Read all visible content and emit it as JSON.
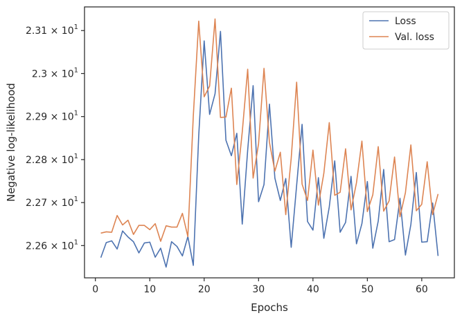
{
  "chart_data": {
    "type": "line",
    "xlabel": "Epochs",
    "ylabel": "Negative log-likelihood",
    "xlim": [
      -2,
      66
    ],
    "ylim": [
      22.525,
      23.155
    ],
    "x_ticks": [
      0,
      10,
      20,
      30,
      40,
      50,
      60
    ],
    "x_tick_labels": [
      "0",
      "10",
      "20",
      "30",
      "40",
      "50",
      "60"
    ],
    "y_ticks": [
      {
        "value": 22.6,
        "mantissa": "2.26",
        "times": "×",
        "base": "10",
        "exp": "1"
      },
      {
        "value": 22.7,
        "mantissa": "2.27",
        "times": "×",
        "base": "10",
        "exp": "1"
      },
      {
        "value": 22.8,
        "mantissa": "2.28",
        "times": "×",
        "base": "10",
        "exp": "1"
      },
      {
        "value": 22.9,
        "mantissa": "2.29",
        "times": "×",
        "base": "10",
        "exp": "1"
      },
      {
        "value": 23.0,
        "mantissa": "2.3",
        "times": "×",
        "base": "10",
        "exp": "1"
      },
      {
        "value": 23.1,
        "mantissa": "2.31",
        "times": "×",
        "base": "10",
        "exp": "1"
      }
    ],
    "grid": false,
    "legend_position": "top-right",
    "x": [
      1,
      2,
      3,
      4,
      5,
      6,
      7,
      8,
      9,
      10,
      11,
      12,
      13,
      14,
      15,
      16,
      17,
      18,
      19,
      20,
      21,
      22,
      23,
      24,
      25,
      26,
      27,
      28,
      29,
      30,
      31,
      32,
      33,
      34,
      35,
      36,
      37,
      38,
      39,
      40,
      41,
      42,
      43,
      44,
      45,
      46,
      47,
      48,
      49,
      50,
      51,
      52,
      53,
      54,
      55,
      56,
      57,
      58,
      59,
      60,
      61,
      62,
      63
    ],
    "series": [
      {
        "name": "Loss",
        "color": "#4c72b0",
        "values": [
          22.572,
          22.607,
          22.611,
          22.592,
          22.634,
          22.62,
          22.609,
          22.583,
          22.606,
          22.608,
          22.573,
          22.594,
          22.55,
          22.609,
          22.598,
          22.576,
          22.621,
          22.554,
          22.856,
          23.076,
          22.905,
          22.953,
          23.098,
          22.845,
          22.809,
          22.861,
          22.65,
          22.822,
          22.972,
          22.702,
          22.742,
          22.929,
          22.757,
          22.705,
          22.756,
          22.596,
          22.74,
          22.882,
          22.656,
          22.636,
          22.758,
          22.617,
          22.69,
          22.797,
          22.631,
          22.654,
          22.761,
          22.604,
          22.651,
          22.749,
          22.594,
          22.657,
          22.777,
          22.609,
          22.614,
          22.71,
          22.578,
          22.649,
          22.77,
          22.608,
          22.609,
          22.699,
          22.576
        ]
      },
      {
        "name": "Val. loss",
        "color": "#dd8452",
        "values": [
          22.629,
          22.632,
          22.631,
          22.67,
          22.648,
          22.659,
          22.626,
          22.647,
          22.647,
          22.637,
          22.651,
          22.61,
          22.646,
          22.643,
          22.643,
          22.675,
          22.621,
          22.901,
          23.122,
          22.946,
          22.971,
          23.127,
          22.898,
          22.899,
          22.966,
          22.742,
          22.864,
          23.01,
          22.757,
          22.837,
          23.012,
          22.84,
          22.773,
          22.817,
          22.672,
          22.803,
          22.98,
          22.743,
          22.705,
          22.822,
          22.694,
          22.768,
          22.886,
          22.717,
          22.724,
          22.825,
          22.683,
          22.746,
          22.843,
          22.679,
          22.718,
          22.83,
          22.68,
          22.704,
          22.806,
          22.667,
          22.723,
          22.834,
          22.681,
          22.696,
          22.795,
          22.672,
          22.72
        ]
      }
    ]
  }
}
